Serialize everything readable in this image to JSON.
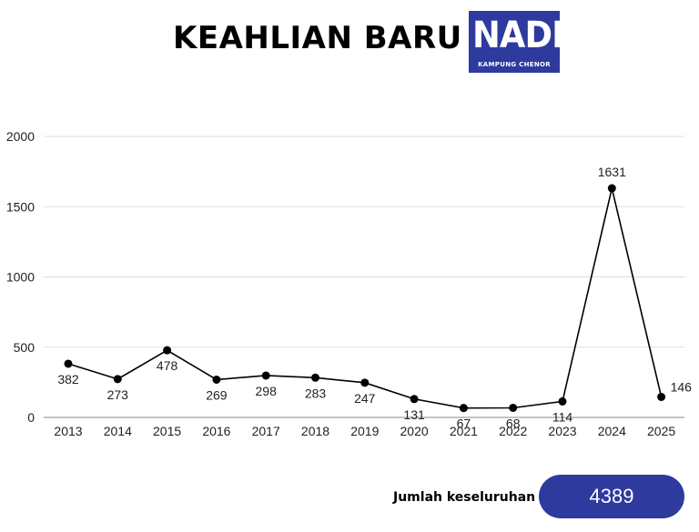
{
  "title": "KEAHLIAN BARU",
  "logo": {
    "word": "NADI",
    "subtitle": "KAMPUNG CHENOR",
    "color": "#2e3a9e"
  },
  "total": {
    "label": "Jumlah keseluruhan",
    "value": "4389",
    "color": "#2e3a9e"
  },
  "chart_data": {
    "type": "line",
    "title": "",
    "xlabel": "",
    "ylabel": "",
    "categories": [
      "2013",
      "2014",
      "2015",
      "2016",
      "2017",
      "2018",
      "2019",
      "2020",
      "2021",
      "2022",
      "2023",
      "2024",
      "2025"
    ],
    "series": [
      {
        "values": [
          382,
          273,
          478,
          269,
          298,
          283,
          247,
          131,
          67,
          68,
          114,
          1631,
          146
        ]
      }
    ],
    "ylim": [
      0,
      2000
    ],
    "yticks": [
      0,
      500,
      1000,
      1500,
      2000
    ],
    "grid": true,
    "legend": "none",
    "line_color": "#000000",
    "grid_color": "#dddddd"
  }
}
